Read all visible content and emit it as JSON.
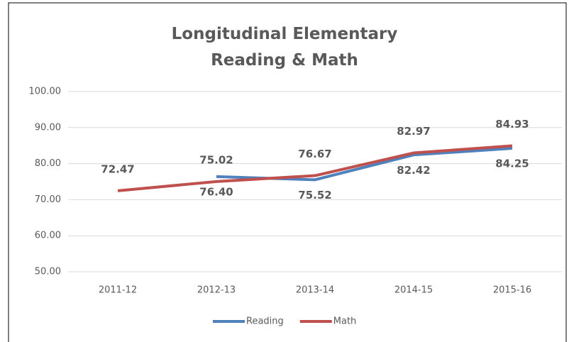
{
  "chart_data": {
    "type": "line",
    "title": "Longitudinal Elementary Reading & Math",
    "categories": [
      "2011-12",
      "2012-13",
      "2013-14",
      "2014-15",
      "2015-16"
    ],
    "series": [
      {
        "name": "Reading",
        "color": "#4f81bd",
        "label_color": "#5b8fd6",
        "label_position": "below",
        "values": [
          null,
          76.4,
          75.52,
          82.42,
          84.25
        ],
        "value_labels": [
          null,
          "76.40",
          "75.52",
          "82.42",
          "84.25"
        ]
      },
      {
        "name": "Math",
        "color": "#c0504d",
        "label_color": "#ff0000",
        "label_position": "above",
        "values": [
          72.47,
          75.02,
          76.67,
          82.97,
          84.93
        ],
        "value_labels": [
          "72.47",
          "75.02",
          "76.67",
          "82.97",
          "84.93"
        ]
      }
    ],
    "ylim": [
      50,
      100
    ],
    "yticks": [
      {
        "value": 50,
        "label": "50.00"
      },
      {
        "value": 60,
        "label": "60.00"
      },
      {
        "value": 70,
        "label": "70.00"
      },
      {
        "value": 80,
        "label": "80.00"
      },
      {
        "value": 90,
        "label": "90.00"
      },
      {
        "value": 100,
        "label": "100.00"
      }
    ],
    "grid": true,
    "legend": "bottom"
  }
}
